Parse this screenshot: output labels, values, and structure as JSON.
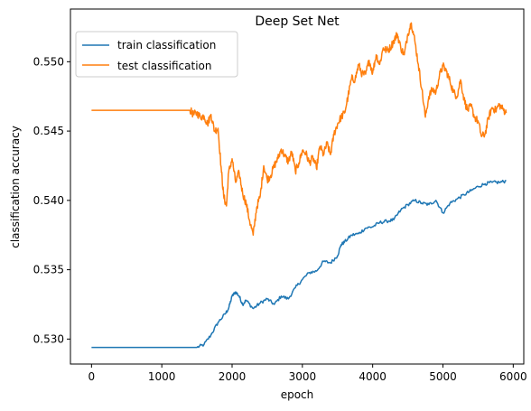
{
  "chart_data": {
    "type": "line",
    "title": "Deep Set Net",
    "xlabel": "epoch",
    "ylabel": "classification accuracy",
    "xlim": [
      -300,
      6150
    ],
    "ylim": [
      0.5282,
      0.5538
    ],
    "xticks": [
      0,
      1000,
      2000,
      3000,
      4000,
      5000,
      6000
    ],
    "yticks": [
      0.53,
      0.535,
      0.54,
      0.545,
      0.55
    ],
    "ytick_labels": [
      "0.530",
      "0.535",
      "0.540",
      "0.545",
      "0.550"
    ],
    "grid": false,
    "legend_position": "top-left",
    "series": [
      {
        "name": "train classification",
        "color": "#1f77b4",
        "x": [
          0,
          1000,
          1500,
          1600,
          1700,
          1800,
          1900,
          1950,
          2000,
          2050,
          2100,
          2150,
          2200,
          2300,
          2400,
          2500,
          2600,
          2700,
          2800,
          2900,
          3000,
          3100,
          3200,
          3300,
          3400,
          3500,
          3550,
          3600,
          3700,
          3800,
          3900,
          4000,
          4100,
          4200,
          4300,
          4400,
          4500,
          4600,
          4700,
          4800,
          4900,
          5000,
          5100,
          5200,
          5300,
          5400,
          5500,
          5600,
          5700,
          5800,
          5900
        ],
        "y": [
          0.5294,
          0.5294,
          0.5294,
          0.5296,
          0.5303,
          0.5312,
          0.5318,
          0.5322,
          0.5331,
          0.5334,
          0.5331,
          0.5325,
          0.5328,
          0.5322,
          0.5326,
          0.5329,
          0.5325,
          0.5331,
          0.5329,
          0.5337,
          0.5343,
          0.5348,
          0.5349,
          0.5356,
          0.5355,
          0.536,
          0.5368,
          0.537,
          0.5375,
          0.5376,
          0.538,
          0.5381,
          0.5384,
          0.5385,
          0.5386,
          0.5393,
          0.5397,
          0.54,
          0.5398,
          0.5397,
          0.54,
          0.5391,
          0.5398,
          0.5401,
          0.5404,
          0.5407,
          0.541,
          0.5412,
          0.5413,
          0.5413,
          0.5414
        ]
      },
      {
        "name": "test classification",
        "color": "#ff7f0e",
        "x": [
          0,
          1000,
          1400,
          1450,
          1500,
          1550,
          1600,
          1650,
          1700,
          1750,
          1800,
          1850,
          1880,
          1920,
          1950,
          2000,
          2050,
          2100,
          2150,
          2200,
          2250,
          2300,
          2350,
          2400,
          2450,
          2500,
          2550,
          2600,
          2650,
          2700,
          2750,
          2800,
          2850,
          2900,
          2950,
          3000,
          3050,
          3100,
          3150,
          3200,
          3250,
          3300,
          3350,
          3400,
          3450,
          3500,
          3550,
          3600,
          3650,
          3700,
          3750,
          3800,
          3850,
          3900,
          3950,
          4000,
          4050,
          4100,
          4150,
          4200,
          4250,
          4300,
          4350,
          4400,
          4450,
          4500,
          4550,
          4600,
          4650,
          4700,
          4750,
          4800,
          4850,
          4900,
          4950,
          5000,
          5050,
          5100,
          5150,
          5200,
          5250,
          5300,
          5350,
          5400,
          5450,
          5500,
          5550,
          5600,
          5650,
          5700,
          5750,
          5800,
          5850,
          5900
        ],
        "y": [
          0.5465,
          0.5465,
          0.5465,
          0.5462,
          0.5463,
          0.546,
          0.5461,
          0.5455,
          0.5462,
          0.545,
          0.5452,
          0.542,
          0.5403,
          0.5396,
          0.542,
          0.543,
          0.5413,
          0.542,
          0.5405,
          0.5398,
          0.5385,
          0.5375,
          0.5395,
          0.5403,
          0.5425,
          0.5415,
          0.5418,
          0.5425,
          0.543,
          0.5437,
          0.5432,
          0.5428,
          0.5435,
          0.5421,
          0.5427,
          0.5436,
          0.5434,
          0.5427,
          0.5431,
          0.5423,
          0.5439,
          0.5433,
          0.5441,
          0.5433,
          0.5448,
          0.5455,
          0.546,
          0.5463,
          0.5475,
          0.5488,
          0.5487,
          0.5498,
          0.5491,
          0.5491,
          0.5501,
          0.5492,
          0.5505,
          0.5498,
          0.551,
          0.5508,
          0.551,
          0.5515,
          0.552,
          0.551,
          0.5505,
          0.552,
          0.5528,
          0.5515,
          0.5498,
          0.548,
          0.546,
          0.5475,
          0.548,
          0.5478,
          0.549,
          0.5497,
          0.5493,
          0.5486,
          0.5478,
          0.5475,
          0.5487,
          0.5473,
          0.5465,
          0.5468,
          0.546,
          0.5457,
          0.5446,
          0.5448,
          0.546,
          0.5467,
          0.5465,
          0.5469,
          0.5466,
          0.5463
        ]
      }
    ]
  }
}
